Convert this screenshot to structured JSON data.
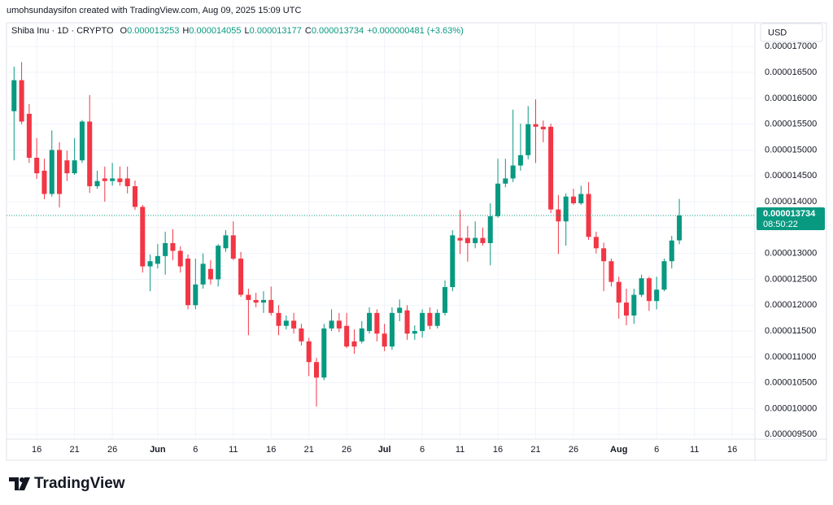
{
  "chart_data": {
    "type": "candlestick",
    "header": "umohsundaysifon created with TradingView.com, Aug 09, 2025 15:09 UTC",
    "symbol": "Shiba Inu · 1D · CRYPTO",
    "ohlc_prefixes": [
      "O",
      "H",
      "L",
      "C"
    ],
    "change_label": "+0.000000481 (+3.63%)",
    "currency": "USD",
    "countdown": "08:50:22",
    "brand": "TradingView",
    "up_color": "#089981",
    "down_color": "#f23645",
    "grid": true,
    "x": [
      "2025-05-13",
      "2025-05-14",
      "2025-05-15",
      "2025-05-16",
      "2025-05-17",
      "2025-05-18",
      "2025-05-19",
      "2025-05-20",
      "2025-05-21",
      "2025-05-22",
      "2025-05-23",
      "2025-05-24",
      "2025-05-25",
      "2025-05-26",
      "2025-05-27",
      "2025-05-28",
      "2025-05-29",
      "2025-05-30",
      "2025-05-31",
      "2025-06-01",
      "2025-06-02",
      "2025-06-03",
      "2025-06-04",
      "2025-06-05",
      "2025-06-06",
      "2025-06-07",
      "2025-06-08",
      "2025-06-09",
      "2025-06-10",
      "2025-06-11",
      "2025-06-12",
      "2025-06-13",
      "2025-06-14",
      "2025-06-15",
      "2025-06-16",
      "2025-06-17",
      "2025-06-18",
      "2025-06-19",
      "2025-06-20",
      "2025-06-21",
      "2025-06-22",
      "2025-06-23",
      "2025-06-24",
      "2025-06-25",
      "2025-06-26",
      "2025-06-27",
      "2025-06-28",
      "2025-06-29",
      "2025-06-30",
      "2025-07-01",
      "2025-07-02",
      "2025-07-03",
      "2025-07-04",
      "2025-07-05",
      "2025-07-06",
      "2025-07-07",
      "2025-07-08",
      "2025-07-09",
      "2025-07-10",
      "2025-07-11",
      "2025-07-12",
      "2025-07-13",
      "2025-07-14",
      "2025-07-15",
      "2025-07-16",
      "2025-07-17",
      "2025-07-18",
      "2025-07-19",
      "2025-07-20",
      "2025-07-21",
      "2025-07-22",
      "2025-07-23",
      "2025-07-24",
      "2025-07-25",
      "2025-07-26",
      "2025-07-27",
      "2025-07-28",
      "2025-07-29",
      "2025-07-30",
      "2025-07-31",
      "2025-08-01",
      "2025-08-02",
      "2025-08-03",
      "2025-08-04",
      "2025-08-05",
      "2025-08-06",
      "2025-08-07",
      "2025-08-08",
      "2025-08-09"
    ],
    "open": [
      1.575e-05,
      1.635e-05,
      1.57e-05,
      1.485e-05,
      1.46e-05,
      1.415e-05,
      1.5e-05,
      1.48e-05,
      1.455e-05,
      1.48e-05,
      1.555e-05,
      1.43e-05,
      1.445e-05,
      1.44e-05,
      1.445e-05,
      1.445e-05,
      1.43e-05,
      1.39e-05,
      1.275e-05,
      1.28e-05,
      1.295e-05,
      1.32e-05,
      1.305e-05,
      1.29e-05,
      1.2e-05,
      1.24e-05,
      1.27e-05,
      1.25e-05,
      1.31e-05,
      1.335e-05,
      1.29e-05,
      1.22e-05,
      1.21e-05,
      1.205e-05,
      1.21e-05,
      1.185e-05,
      1.16e-05,
      1.17e-05,
      1.155e-05,
      1.13e-05,
      1.09e-05,
      1.06e-05,
      1.155e-05,
      1.17e-05,
      1.16e-05,
      1.13e-05,
      1.13e-05,
      1.15e-05,
      1.185e-05,
      1.145e-05,
      1.12e-05,
      1.185e-05,
      1.19e-05,
      1.145e-05,
      1.15e-05,
      1.185e-05,
      1.16e-05,
      1.185e-05,
      1.235e-05,
      1.33e-05,
      1.33e-05,
      1.32e-05,
      1.33e-05,
      1.32e-05,
      1.372e-05,
      1.435e-05,
      1.445e-05,
      1.47e-05,
      1.49e-05,
      1.55e-05,
      1.545e-05,
      1.545e-05,
      1.385e-05,
      1.362e-05,
      1.41e-05,
      1.397e-05,
      1.415e-05,
      1.332e-05,
      1.31e-05,
      1.285e-05,
      1.245e-05,
      1.205e-05,
      1.18e-05,
      1.22e-05,
      1.252e-05,
      1.208e-05,
      1.23e-05,
      1.285e-05,
      1.3253e-05
    ],
    "high": [
      1.661e-05,
      1.67e-05,
      1.589e-05,
      1.523e-05,
      1.483e-05,
      1.538e-05,
      1.515e-05,
      1.499e-05,
      1.523e-05,
      1.558e-05,
      1.606e-05,
      1.46e-05,
      1.468e-05,
      1.475e-05,
      1.468e-05,
      1.468e-05,
      1.441e-05,
      1.394e-05,
      1.298e-05,
      1.318e-05,
      1.342e-05,
      1.347e-05,
      1.314e-05,
      1.298e-05,
      1.29e-05,
      1.3e-05,
      1.287e-05,
      1.318e-05,
      1.345e-05,
      1.362e-05,
      1.303e-05,
      1.232e-05,
      1.224e-05,
      1.227e-05,
      1.236e-05,
      1.2e-05,
      1.18e-05,
      1.185e-05,
      1.164e-05,
      1.137e-05,
      1.098e-05,
      1.164e-05,
      1.192e-05,
      1.185e-05,
      1.185e-05,
      1.153e-05,
      1.169e-05,
      1.196e-05,
      1.192e-05,
      1.164e-05,
      1.196e-05,
      1.211e-05,
      1.2e-05,
      1.161e-05,
      1.192e-05,
      1.196e-05,
      1.192e-05,
      1.248e-05,
      1.345e-05,
      1.384e-05,
      1.353e-05,
      1.362e-05,
      1.35e-05,
      1.397e-05,
      1.483e-05,
      1.483e-05,
      1.578e-05,
      1.551e-05,
      1.585e-05,
      1.598e-05,
      1.557e-05,
      1.551e-05,
      1.413e-05,
      1.416e-05,
      1.425e-05,
      1.431e-05,
      1.438e-05,
      1.342e-05,
      1.321e-05,
      1.29e-05,
      1.255e-05,
      1.232e-05,
      1.232e-05,
      1.259e-05,
      1.255e-05,
      1.255e-05,
      1.29e-05,
      1.334e-05,
      1.4055e-05
    ],
    "low": [
      1.48e-05,
      1.55e-05,
      1.475e-05,
      1.444e-05,
      1.405e-05,
      1.41e-05,
      1.389e-05,
      1.44e-05,
      1.452e-05,
      1.475e-05,
      1.417e-05,
      1.425e-05,
      1.4e-05,
      1.431e-05,
      1.431e-05,
      1.416e-05,
      1.384e-05,
      1.263e-05,
      1.227e-05,
      1.271e-05,
      1.259e-05,
      1.287e-05,
      1.263e-05,
      1.192e-05,
      1.192e-05,
      1.232e-05,
      1.24e-05,
      1.236e-05,
      1.303e-05,
      1.287e-05,
      1.216e-05,
      1.142e-05,
      1.196e-05,
      1.185e-05,
      1.18e-05,
      1.142e-05,
      1.153e-05,
      1.145e-05,
      1.122e-05,
      1.063e-05,
      1.004e-05,
      1.055e-05,
      1.15e-05,
      1.148e-05,
      1.117e-05,
      1.106e-05,
      1.126e-05,
      1.145e-05,
      1.13e-05,
      1.111e-05,
      1.114e-05,
      1.169e-05,
      1.133e-05,
      1.133e-05,
      1.137e-05,
      1.153e-05,
      1.155e-05,
      1.18e-05,
      1.227e-05,
      1.299e-05,
      1.284e-05,
      1.31e-05,
      1.315e-05,
      1.277e-05,
      1.369e-05,
      1.428e-05,
      1.438e-05,
      1.46e-05,
      1.482e-05,
      1.475e-05,
      1.515e-05,
      1.378e-05,
      1.299e-05,
      1.315e-05,
      1.394e-05,
      1.394e-05,
      1.326e-05,
      1.3e-05,
      1.227e-05,
      1.236e-05,
      1.174e-05,
      1.161e-05,
      1.164e-05,
      1.216e-05,
      1.189e-05,
      1.192e-05,
      1.227e-05,
      1.271e-05,
      1.3177e-05
    ],
    "close": [
      1.635e-05,
      1.555e-05,
      1.485e-05,
      1.455e-05,
      1.415e-05,
      1.5e-05,
      1.415e-05,
      1.455e-05,
      1.48e-05,
      1.555e-05,
      1.43e-05,
      1.44e-05,
      1.44e-05,
      1.445e-05,
      1.438e-05,
      1.43e-05,
      1.39e-05,
      1.275e-05,
      1.285e-05,
      1.295e-05,
      1.32e-05,
      1.305e-05,
      1.275e-05,
      1.2e-05,
      1.24e-05,
      1.28e-05,
      1.25e-05,
      1.315e-05,
      1.335e-05,
      1.29e-05,
      1.22e-05,
      1.21e-05,
      1.205e-05,
      1.21e-05,
      1.185e-05,
      1.16e-05,
      1.17e-05,
      1.155e-05,
      1.13e-05,
      1.09e-05,
      1.06e-05,
      1.155e-05,
      1.17e-05,
      1.155e-05,
      1.12e-05,
      1.12e-05,
      1.155e-05,
      1.185e-05,
      1.145e-05,
      1.12e-05,
      1.185e-05,
      1.195e-05,
      1.145e-05,
      1.15e-05,
      1.185e-05,
      1.16e-05,
      1.185e-05,
      1.235e-05,
      1.335e-05,
      1.325e-05,
      1.32e-05,
      1.33e-05,
      1.32e-05,
      1.372e-05,
      1.435e-05,
      1.445e-05,
      1.47e-05,
      1.49e-05,
      1.55e-05,
      1.545e-05,
      1.54e-05,
      1.385e-05,
      1.362e-05,
      1.41e-05,
      1.397e-05,
      1.415e-05,
      1.332e-05,
      1.31e-05,
      1.285e-05,
      1.245e-05,
      1.205e-05,
      1.18e-05,
      1.22e-05,
      1.252e-05,
      1.208e-05,
      1.23e-05,
      1.285e-05,
      1.325e-05,
      1.3734e-05
    ],
    "xlim": [
      "2025-05-12",
      "2025-08-19"
    ],
    "xticks": [
      {
        "value": "2025-05-16",
        "label": "16"
      },
      {
        "value": "2025-05-21",
        "label": "21"
      },
      {
        "value": "2025-05-26",
        "label": "26"
      },
      {
        "value": "2025-06-01",
        "label": "Jun"
      },
      {
        "value": "2025-06-06",
        "label": "6"
      },
      {
        "value": "2025-06-11",
        "label": "11"
      },
      {
        "value": "2025-06-16",
        "label": "16"
      },
      {
        "value": "2025-06-21",
        "label": "21"
      },
      {
        "value": "2025-06-26",
        "label": "26"
      },
      {
        "value": "2025-07-01",
        "label": "Jul"
      },
      {
        "value": "2025-07-06",
        "label": "6"
      },
      {
        "value": "2025-07-11",
        "label": "11"
      },
      {
        "value": "2025-07-16",
        "label": "16"
      },
      {
        "value": "2025-07-21",
        "label": "21"
      },
      {
        "value": "2025-07-26",
        "label": "26"
      },
      {
        "value": "2025-08-01",
        "label": "Aug"
      },
      {
        "value": "2025-08-06",
        "label": "6"
      },
      {
        "value": "2025-08-11",
        "label": "11"
      },
      {
        "value": "2025-08-16",
        "label": "16"
      }
    ],
    "ylim": [
      9.41e-06,
      1.746e-05
    ],
    "yticks": [
      {
        "value": 9.5e-06,
        "label": "0.000009500"
      },
      {
        "value": 1e-05,
        "label": "0.000010000"
      },
      {
        "value": 1.05e-05,
        "label": "0.000010500"
      },
      {
        "value": 1.1e-05,
        "label": "0.000011000"
      },
      {
        "value": 1.15e-05,
        "label": "0.000011500"
      },
      {
        "value": 1.2e-05,
        "label": "0.000012000"
      },
      {
        "value": 1.25e-05,
        "label": "0.000012500"
      },
      {
        "value": 1.3e-05,
        "label": "0.000013000"
      },
      {
        "value": 1.35e-05,
        "label": "0.000013500"
      },
      {
        "value": 1.4e-05,
        "label": "0.000014000"
      },
      {
        "value": 1.45e-05,
        "label": "0.000014500"
      },
      {
        "value": 1.5e-05,
        "label": "0.000015000"
      },
      {
        "value": 1.55e-05,
        "label": "0.000015500"
      },
      {
        "value": 1.6e-05,
        "label": "0.000016000"
      },
      {
        "value": 1.65e-05,
        "label": "0.000016500"
      },
      {
        "value": 1.7e-05,
        "label": "0.000017000"
      }
    ]
  }
}
